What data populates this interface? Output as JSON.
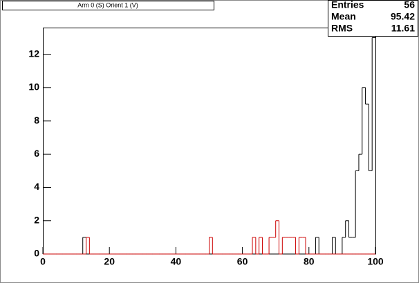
{
  "chart_data": {
    "type": "histogram",
    "title": "Arm 0 (S) Orient 1 (V)",
    "bins": [
      0,
      1,
      2,
      3,
      4,
      5,
      6,
      7,
      8,
      9,
      10,
      11,
      12,
      13,
      14,
      15,
      16,
      17,
      18,
      19,
      20,
      21,
      22,
      23,
      24,
      25,
      26,
      27,
      28,
      29,
      30,
      31,
      32,
      33,
      34,
      35,
      36,
      37,
      38,
      39,
      40,
      41,
      42,
      43,
      44,
      45,
      46,
      47,
      48,
      49,
      50,
      51,
      52,
      53,
      54,
      55,
      56,
      57,
      58,
      59,
      60,
      61,
      62,
      63,
      64,
      65,
      66,
      67,
      68,
      69,
      70,
      71,
      72,
      73,
      74,
      75,
      76,
      77,
      78,
      79,
      80,
      81,
      82,
      83,
      84,
      85,
      86,
      87,
      88,
      89,
      90,
      91,
      92,
      93,
      94,
      95,
      96,
      97,
      98,
      99,
      100
    ],
    "series": [
      {
        "color": "#000000",
        "values": [
          0,
          0,
          0,
          0,
          0,
          0,
          0,
          0,
          0,
          0,
          0,
          0,
          1,
          0,
          0,
          0,
          0,
          0,
          0,
          0,
          0,
          0,
          0,
          0,
          0,
          0,
          0,
          0,
          0,
          0,
          0,
          0,
          0,
          0,
          0,
          0,
          0,
          0,
          0,
          0,
          0,
          0,
          0,
          0,
          0,
          0,
          0,
          0,
          0,
          0,
          0,
          0,
          0,
          0,
          0,
          0,
          0,
          0,
          0,
          0,
          0,
          0,
          0,
          0,
          0,
          0,
          0,
          0,
          0,
          0,
          0,
          0,
          0,
          0,
          0,
          0,
          0,
          0,
          0,
          0,
          0,
          0,
          1,
          0,
          0,
          0,
          0,
          1,
          0,
          0,
          1,
          2,
          1,
          1,
          5,
          6,
          10,
          9,
          5,
          13
        ]
      },
      {
        "color": "#cc0000",
        "values": [
          0,
          0,
          0,
          0,
          0,
          0,
          0,
          0,
          0,
          0,
          0,
          0,
          0,
          1,
          0,
          0,
          0,
          0,
          0,
          0,
          0,
          0,
          0,
          0,
          0,
          0,
          0,
          0,
          0,
          0,
          0,
          0,
          0,
          0,
          0,
          0,
          0,
          0,
          0,
          0,
          0,
          0,
          0,
          0,
          0,
          0,
          0,
          0,
          0,
          0,
          1,
          0,
          0,
          0,
          0,
          0,
          0,
          0,
          0,
          0,
          0,
          0,
          0,
          1,
          0,
          1,
          0,
          0,
          1,
          1,
          2,
          0,
          1,
          1,
          1,
          1,
          0,
          1,
          1,
          0,
          0,
          0,
          0,
          0,
          0,
          0,
          0,
          0,
          0,
          0,
          0,
          0,
          0,
          0,
          0,
          0,
          0,
          0,
          0,
          0
        ]
      }
    ],
    "xlim": [
      0,
      100
    ],
    "xticks": [
      0,
      20,
      40,
      60,
      80,
      100
    ],
    "ylim": [
      0,
      13.6
    ],
    "yticks": [
      0,
      2,
      4,
      6,
      8,
      10,
      12
    ],
    "stats": [
      {
        "label": "Entries",
        "value": 56
      },
      {
        "label": "Mean",
        "value": 95.42
      },
      {
        "label": "RMS",
        "value": 11.61
      }
    ]
  }
}
